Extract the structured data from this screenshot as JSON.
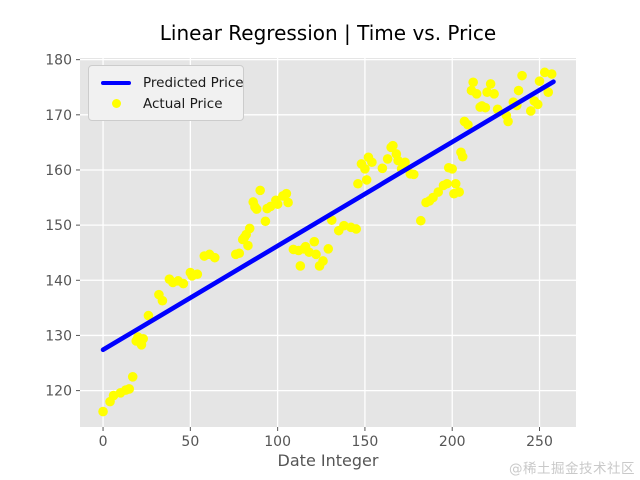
{
  "title": "Linear Regression | Time vs. Price",
  "watermark": "@稀土掘金技术社区",
  "legend": {
    "position": "upper left",
    "items": [
      {
        "label": "Predicted Price",
        "type": "line",
        "color": "#0000ff"
      },
      {
        "label": "Actual Price",
        "type": "dot",
        "color": "#ffff00"
      }
    ]
  },
  "colors": {
    "plot_background": "#e5e5e5",
    "grid": "#ffffff",
    "tick_text": "#555555",
    "title_text": "#000000",
    "predicted_line": "#0000ff",
    "actual_dots": "#ffff00",
    "watermark_text": "#c9c9c9"
  },
  "chart_data": {
    "type": "scatter",
    "title": "Linear Regression | Time vs. Price",
    "xlabel": "Date Integer",
    "ylabel": "",
    "xlim": [
      -13.2,
      270.9
    ],
    "ylim": [
      113.4,
      180.3
    ],
    "x_ticks": [
      0,
      50,
      100,
      150,
      200,
      250
    ],
    "y_ticks": [
      120,
      130,
      140,
      150,
      160,
      170,
      180
    ],
    "grid": true,
    "legend_position": "upper left",
    "series": [
      {
        "name": "Predicted Price",
        "type": "line",
        "color": "#0000ff",
        "x": [
          0,
          258
        ],
        "y": [
          127.4,
          176.0
        ]
      },
      {
        "name": "Actual Price",
        "type": "scatter",
        "color": "#ffff00",
        "points": [
          [
            0,
            116.2
          ],
          [
            4,
            118.0
          ],
          [
            6,
            119.1
          ],
          [
            10,
            119.6
          ],
          [
            13,
            120.1
          ],
          [
            15,
            120.3
          ],
          [
            17,
            122.5
          ],
          [
            19,
            129.0
          ],
          [
            20,
            129.7
          ],
          [
            22,
            128.3
          ],
          [
            23,
            129.4
          ],
          [
            26,
            133.6
          ],
          [
            32,
            137.4
          ],
          [
            34,
            136.3
          ],
          [
            38,
            140.2
          ],
          [
            40,
            139.6
          ],
          [
            43,
            139.9
          ],
          [
            46,
            139.4
          ],
          [
            50,
            141.4
          ],
          [
            51,
            140.8
          ],
          [
            54,
            141.1
          ],
          [
            58,
            144.4
          ],
          [
            61,
            144.7
          ],
          [
            64,
            144.1
          ],
          [
            76,
            144.7
          ],
          [
            78,
            144.9
          ],
          [
            80,
            147.4
          ],
          [
            81,
            147.8
          ],
          [
            82,
            148.3
          ],
          [
            83,
            146.3
          ],
          [
            84,
            149.4
          ],
          [
            86,
            154.2
          ],
          [
            87,
            153.3
          ],
          [
            88,
            152.9
          ],
          [
            90,
            156.3
          ],
          [
            93,
            150.7
          ],
          [
            94,
            153.0
          ],
          [
            96,
            153.4
          ],
          [
            99,
            154.5
          ],
          [
            100,
            153.8
          ],
          [
            103,
            155.3
          ],
          [
            105,
            155.7
          ],
          [
            106,
            154.1
          ],
          [
            109,
            145.6
          ],
          [
            112,
            145.4
          ],
          [
            113,
            142.6
          ],
          [
            115,
            145.7
          ],
          [
            116,
            146.1
          ],
          [
            118,
            145.1
          ],
          [
            121,
            147.0
          ],
          [
            122,
            144.7
          ],
          [
            124,
            142.6
          ],
          [
            126,
            143.5
          ],
          [
            129,
            145.7
          ],
          [
            131,
            150.9
          ],
          [
            135,
            149.0
          ],
          [
            138,
            149.9
          ],
          [
            142,
            149.6
          ],
          [
            145,
            149.3
          ],
          [
            146,
            157.5
          ],
          [
            151,
            158.2
          ],
          [
            148,
            161.1
          ],
          [
            150,
            160.2
          ],
          [
            152,
            162.3
          ],
          [
            154,
            161.4
          ],
          [
            160,
            160.3
          ],
          [
            163,
            162.0
          ],
          [
            165,
            164.1
          ],
          [
            166,
            164.4
          ],
          [
            168,
            162.9
          ],
          [
            169,
            161.7
          ],
          [
            171,
            160.2
          ],
          [
            173,
            161.4
          ],
          [
            176,
            159.3
          ],
          [
            178,
            159.2
          ],
          [
            182,
            150.8
          ],
          [
            185,
            154.1
          ],
          [
            187,
            154.4
          ],
          [
            189,
            155.0
          ],
          [
            192,
            156.0
          ],
          [
            195,
            157.2
          ],
          [
            197,
            157.5
          ],
          [
            198,
            160.4
          ],
          [
            200,
            160.2
          ],
          [
            201,
            155.7
          ],
          [
            202,
            157.5
          ],
          [
            204,
            156.0
          ],
          [
            205,
            163.2
          ],
          [
            206,
            162.4
          ],
          [
            207,
            168.8
          ],
          [
            209,
            168.2
          ],
          [
            211,
            174.4
          ],
          [
            212,
            175.9
          ],
          [
            214,
            173.8
          ],
          [
            216,
            171.4
          ],
          [
            217,
            171.6
          ],
          [
            219,
            171.3
          ],
          [
            220,
            174.1
          ],
          [
            222,
            175.6
          ],
          [
            224,
            173.8
          ],
          [
            226,
            171.0
          ],
          [
            231,
            169.9
          ],
          [
            232,
            168.8
          ],
          [
            235,
            172.3
          ],
          [
            237,
            171.7
          ],
          [
            238,
            174.4
          ],
          [
            240,
            177.1
          ],
          [
            245,
            170.7
          ],
          [
            247,
            172.5
          ],
          [
            249,
            171.9
          ],
          [
            250,
            176.1
          ],
          [
            253,
            177.7
          ],
          [
            255,
            174.1
          ],
          [
            257,
            177.4
          ]
        ]
      }
    ]
  }
}
